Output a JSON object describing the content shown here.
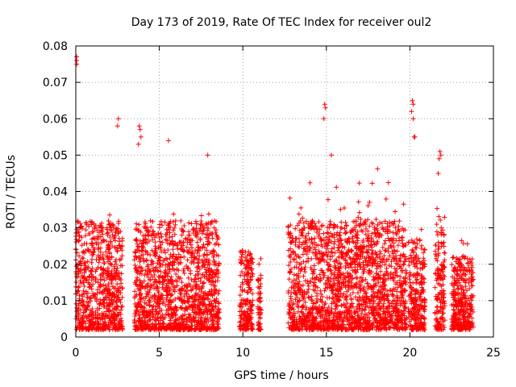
{
  "chart_data": {
    "type": "scatter",
    "title": "Day 173 of 2019, Rate Of TEC Index for receiver oul2",
    "xlabel": "GPS time / hours",
    "ylabel": "ROTI / TECUs",
    "xlim": [
      0,
      25
    ],
    "ylim": [
      0,
      0.08
    ],
    "xticks": [
      0,
      5,
      10,
      15,
      20,
      25
    ],
    "yticks": [
      0,
      0.01,
      0.02,
      0.03,
      0.04,
      0.05,
      0.06,
      0.07,
      0.08
    ],
    "xtick_labels": [
      "0",
      "5",
      "10",
      "15",
      "20",
      "25"
    ],
    "ytick_labels": [
      "0",
      "0.01",
      "0.02",
      "0.03",
      "0.04",
      "0.05",
      "0.06",
      "0.07",
      "0.08"
    ],
    "grid": true,
    "marker": "+",
    "series": [
      {
        "name": "ROTI",
        "color": "#ff0000",
        "x": [
          0.02,
          0.05,
          0.08,
          0.12,
          0.15,
          0.2,
          0.25,
          0.3,
          0.35,
          0.4,
          0.45,
          0.5,
          0.55,
          0.6,
          0.7,
          0.8,
          0.9,
          1.0,
          1.1,
          1.2,
          1.3,
          1.4,
          1.5,
          1.6,
          1.7,
          1.8,
          1.9,
          2.0,
          2.1,
          2.2,
          2.3,
          2.4,
          2.5,
          2.6,
          2.7,
          0.1,
          0.3,
          0.5,
          0.7,
          0.9,
          1.1,
          1.3,
          1.5,
          1.7,
          1.9,
          2.1,
          2.3,
          2.5,
          2.55,
          2.6,
          0.05,
          0.08,
          0.1,
          0.4,
          0.6,
          0.9,
          1.2,
          1.6,
          2.0,
          2.4,
          2.5,
          2.55,
          3.5,
          3.6,
          3.7,
          3.8,
          3.9,
          4.0,
          4.2,
          4.4,
          4.6,
          4.8,
          5.0,
          5.2,
          5.4,
          5.6,
          5.8,
          6.0,
          6.2,
          6.4,
          6.6,
          6.8,
          7.0,
          7.2,
          7.4,
          7.6,
          7.8,
          8.0,
          8.2,
          8.4,
          3.8,
          3.85,
          3.9,
          3.95,
          4.1,
          4.5,
          5.1,
          5.5,
          6.1,
          6.5,
          7.1,
          7.5,
          8.1,
          3.6,
          3.9,
          4.3,
          4.7,
          5.3,
          5.7,
          6.3,
          6.7,
          7.3,
          7.7,
          8.3,
          3.75,
          3.8,
          3.85,
          5.55,
          7.9,
          9.9,
          10.0,
          10.2,
          10.3,
          10.4,
          10.35,
          10.5,
          11.0,
          11.1,
          11.0,
          12.8,
          13.0,
          13.2,
          13.4,
          13.6,
          13.8,
          14.0,
          14.2,
          14.4,
          14.6,
          14.8,
          15.0,
          15.2,
          15.4,
          15.6,
          15.8,
          16.0,
          16.2,
          16.4,
          16.6,
          16.8,
          17.0,
          17.2,
          17.4,
          17.6,
          17.8,
          18.0,
          18.2,
          18.4,
          18.6,
          18.8,
          19.0,
          19.2,
          19.4,
          19.6,
          13.1,
          13.5,
          13.9,
          14.3,
          14.7,
          15.1,
          15.5,
          15.9,
          16.3,
          16.7,
          17.1,
          17.5,
          17.9,
          18.3,
          18.7,
          19.1,
          19.5,
          13.3,
          14.5,
          14.9,
          14.95,
          15.3,
          16.1,
          17.3,
          18.1,
          18.9,
          19.3,
          14.85,
          14.9,
          13.6,
          17.45,
          19.95,
          20.0,
          20.1,
          20.2,
          20.3,
          20.4,
          20.5,
          20.6,
          20.7,
          20.8,
          20.1,
          20.15,
          20.2,
          20.2,
          20.05,
          20.25,
          20.6,
          21.6,
          21.7,
          21.8,
          21.9,
          22.0,
          21.75,
          21.8,
          21.85,
          21.9,
          21.7,
          21.8,
          22.6,
          22.7,
          22.8,
          22.9,
          23.0,
          23.1,
          23.2,
          23.3,
          23.4,
          23.5,
          23.6,
          22.7,
          23.0,
          23.3,
          23.6,
          23.3
        ]
      }
    ]
  }
}
